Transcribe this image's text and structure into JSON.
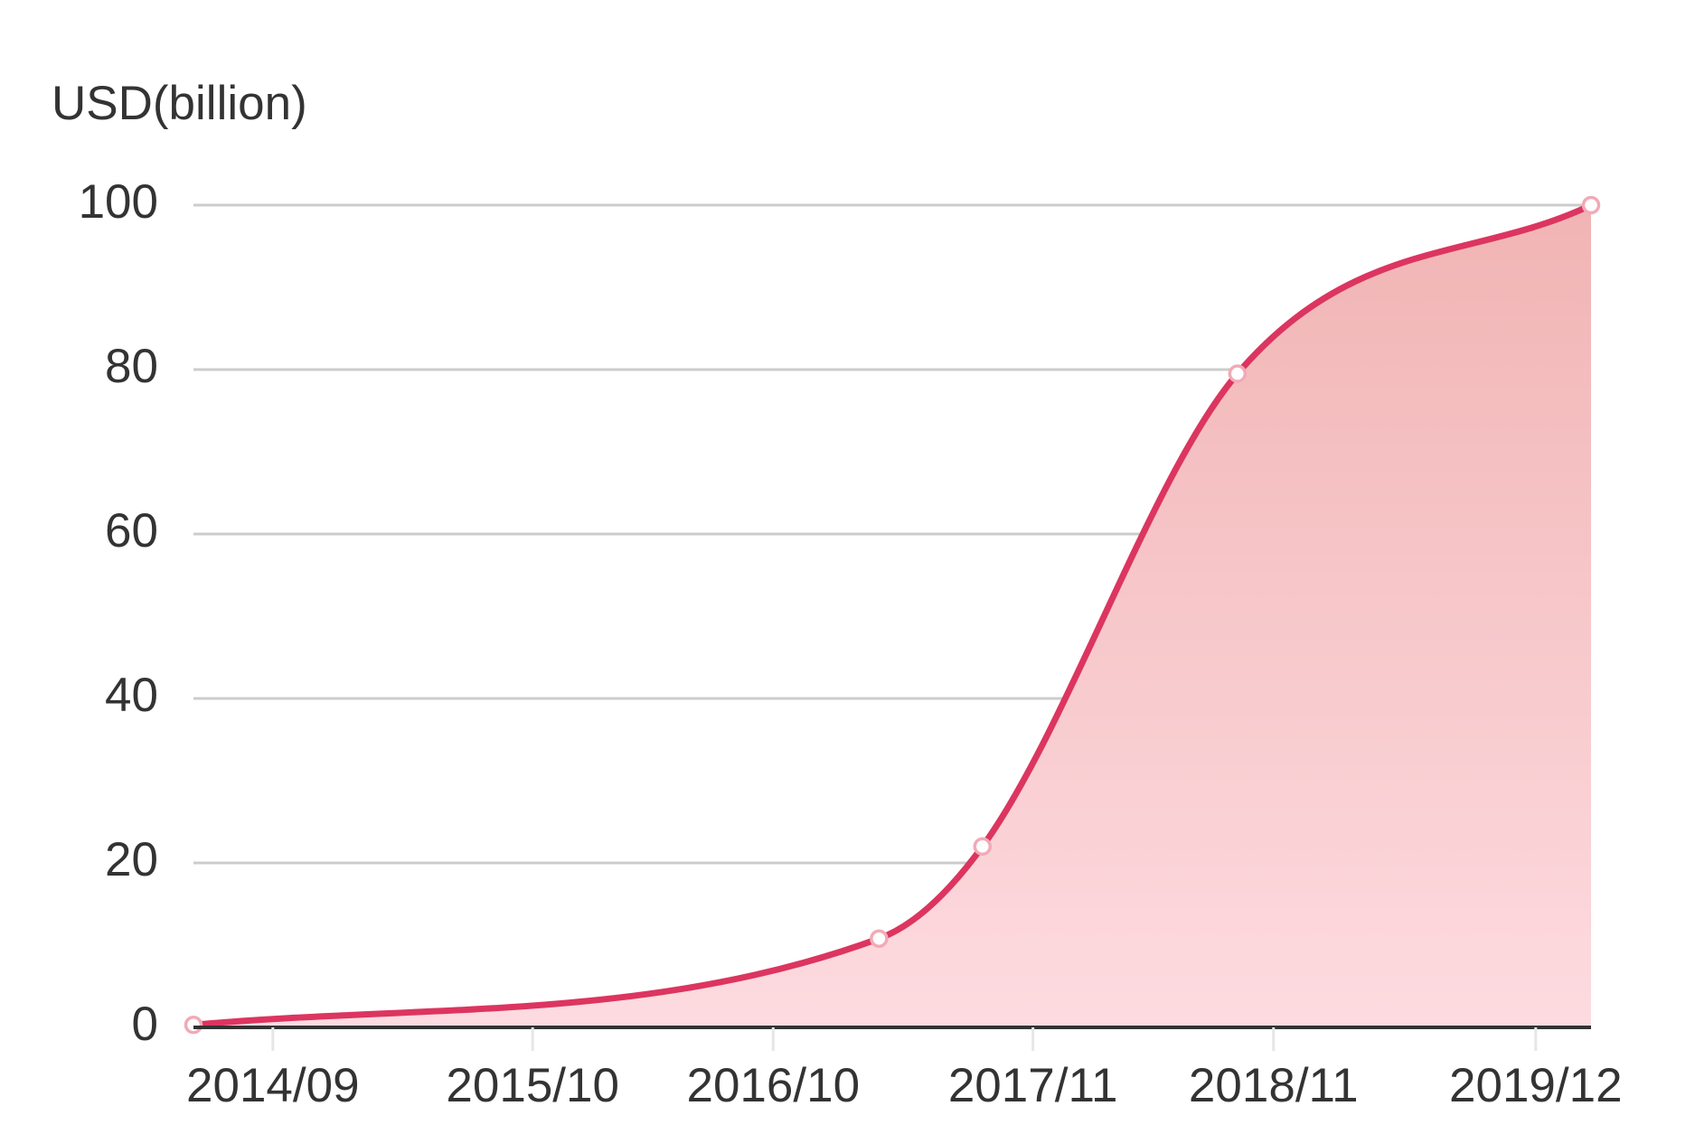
{
  "chart_data": {
    "type": "area",
    "y_label": "USD(billion)",
    "x": [
      2014.34,
      2017.19,
      2017.62,
      2018.68,
      2020.15
    ],
    "series": [
      {
        "color": "#dc3560",
        "values": [
          0.3,
          10.8,
          22,
          79.5,
          100
        ]
      }
    ],
    "xlim": [
      2014.34,
      2020.15
    ],
    "xticks": [
      {
        "value": 2014.67,
        "label": "2014/09"
      },
      {
        "value": 2015.75,
        "label": "2015/10"
      },
      {
        "value": 2016.75,
        "label": "2016/10"
      },
      {
        "value": 2017.83,
        "label": "2017/11"
      },
      {
        "value": 2018.83,
        "label": "2018/11"
      },
      {
        "value": 2019.92,
        "label": "2019/12"
      }
    ],
    "ylim": [
      0,
      100
    ],
    "yticks": [
      0,
      20,
      40,
      60,
      80,
      100
    ],
    "grid": true
  }
}
